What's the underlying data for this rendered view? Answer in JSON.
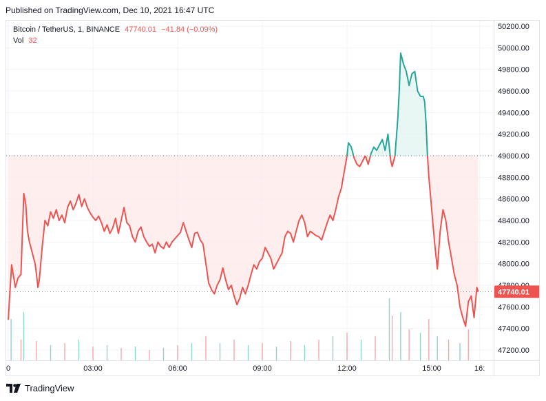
{
  "header": {
    "published": "Published on TradingView.com, Dec 10, 2021 16:47 UTC"
  },
  "legend": {
    "symbol": "Bitcoin / TetherUS, 1, BINANCE",
    "price": "47740.01",
    "change": "−41.84 (−0.09%)",
    "volume_label": "Vol",
    "volume_value": "32"
  },
  "last_price_label": "47740.01",
  "brand": {
    "name": "TradingView"
  },
  "colors": {
    "up": "#26a69a",
    "down": "#ef5350",
    "fill_up": "#e0f3f0",
    "fill_down": "#fde8e8",
    "last_price_tag": "#ef5350"
  },
  "chart_data": {
    "type": "line",
    "title": "Bitcoin / TetherUS, 1, BINANCE",
    "baseline": 49000,
    "last_price": 47740.01,
    "ylim": [
      47120,
      50290
    ],
    "y_ticks": [
      "50200.00",
      "50000.00",
      "49800.00",
      "49600.00",
      "49400.00",
      "49200.00",
      "49000.00",
      "48800.00",
      "48600.00",
      "48400.00",
      "48200.00",
      "48000.00",
      "47800.00",
      "47600.00",
      "47400.00",
      "47200.00"
    ],
    "x_ticks": [
      {
        "label": "0",
        "hour": 0
      },
      {
        "label": "03:00",
        "hour": 3
      },
      {
        "label": "06:00",
        "hour": 6
      },
      {
        "label": "09:00",
        "hour": 9
      },
      {
        "label": "12:00",
        "hour": 12
      },
      {
        "label": "15:00",
        "hour": 15
      },
      {
        "label": "16:",
        "hour": 16.7
      }
    ],
    "grid": true,
    "series": [
      {
        "points": [
          [
            0.0,
            47480
          ],
          [
            0.05,
            47700
          ],
          [
            0.12,
            47990
          ],
          [
            0.25,
            47780
          ],
          [
            0.35,
            47870
          ],
          [
            0.45,
            47900
          ],
          [
            0.55,
            48650
          ],
          [
            0.62,
            48550
          ],
          [
            0.68,
            48300
          ],
          [
            0.75,
            48200
          ],
          [
            0.85,
            48100
          ],
          [
            0.95,
            48000
          ],
          [
            1.0,
            47900
          ],
          [
            1.05,
            47780
          ],
          [
            1.1,
            47850
          ],
          [
            1.2,
            48150
          ],
          [
            1.3,
            48400
          ],
          [
            1.4,
            48350
          ],
          [
            1.5,
            48480
          ],
          [
            1.6,
            48420
          ],
          [
            1.7,
            48500
          ],
          [
            1.8,
            48400
          ],
          [
            1.9,
            48450
          ],
          [
            2.0,
            48380
          ],
          [
            2.1,
            48520
          ],
          [
            2.2,
            48580
          ],
          [
            2.3,
            48500
          ],
          [
            2.4,
            48560
          ],
          [
            2.5,
            48640
          ],
          [
            2.6,
            48530
          ],
          [
            2.7,
            48600
          ],
          [
            2.8,
            48520
          ],
          [
            2.9,
            48470
          ],
          [
            3.0,
            48430
          ],
          [
            3.1,
            48400
          ],
          [
            3.2,
            48440
          ],
          [
            3.3,
            48380
          ],
          [
            3.4,
            48300
          ],
          [
            3.5,
            48360
          ],
          [
            3.6,
            48280
          ],
          [
            3.7,
            48330
          ],
          [
            3.8,
            48420
          ],
          [
            3.9,
            48280
          ],
          [
            4.0,
            48400
          ],
          [
            4.1,
            48520
          ],
          [
            4.2,
            48380
          ],
          [
            4.3,
            48350
          ],
          [
            4.4,
            48250
          ],
          [
            4.5,
            48200
          ],
          [
            4.6,
            48300
          ],
          [
            4.7,
            48340
          ],
          [
            4.8,
            48250
          ],
          [
            4.9,
            48200
          ],
          [
            5.0,
            48160
          ],
          [
            5.1,
            48180
          ],
          [
            5.2,
            48100
          ],
          [
            5.3,
            48200
          ],
          [
            5.4,
            48160
          ],
          [
            5.5,
            48140
          ],
          [
            5.6,
            48200
          ],
          [
            5.7,
            48150
          ],
          [
            5.8,
            48200
          ],
          [
            5.9,
            48230
          ],
          [
            6.0,
            48260
          ],
          [
            6.1,
            48290
          ],
          [
            6.2,
            48380
          ],
          [
            6.3,
            48300
          ],
          [
            6.4,
            48220
          ],
          [
            6.5,
            48150
          ],
          [
            6.6,
            48280
          ],
          [
            6.7,
            48290
          ],
          [
            6.8,
            48220
          ],
          [
            6.9,
            48180
          ],
          [
            7.0,
            48000
          ],
          [
            7.1,
            47820
          ],
          [
            7.2,
            47760
          ],
          [
            7.3,
            47720
          ],
          [
            7.4,
            47800
          ],
          [
            7.5,
            47850
          ],
          [
            7.6,
            47960
          ],
          [
            7.7,
            47850
          ],
          [
            7.8,
            47760
          ],
          [
            7.9,
            47800
          ],
          [
            8.0,
            47700
          ],
          [
            8.1,
            47620
          ],
          [
            8.2,
            47680
          ],
          [
            8.3,
            47780
          ],
          [
            8.4,
            47720
          ],
          [
            8.5,
            47800
          ],
          [
            8.6,
            47900
          ],
          [
            8.7,
            47990
          ],
          [
            8.8,
            47950
          ],
          [
            8.9,
            48020
          ],
          [
            9.0,
            48050
          ],
          [
            9.1,
            48150
          ],
          [
            9.2,
            48100
          ],
          [
            9.3,
            48050
          ],
          [
            9.4,
            47950
          ],
          [
            9.5,
            48000
          ],
          [
            9.6,
            48050
          ],
          [
            9.7,
            48100
          ],
          [
            9.8,
            48250
          ],
          [
            9.9,
            48300
          ],
          [
            10.0,
            48280
          ],
          [
            10.1,
            48200
          ],
          [
            10.2,
            48300
          ],
          [
            10.3,
            48400
          ],
          [
            10.4,
            48450
          ],
          [
            10.5,
            48380
          ],
          [
            10.6,
            48250
          ],
          [
            10.7,
            48300
          ],
          [
            10.8,
            48280
          ],
          [
            10.9,
            48260
          ],
          [
            11.0,
            48250
          ],
          [
            11.1,
            48220
          ],
          [
            11.2,
            48300
          ],
          [
            11.3,
            48380
          ],
          [
            11.4,
            48450
          ],
          [
            11.5,
            48400
          ],
          [
            11.6,
            48500
          ],
          [
            11.7,
            48620
          ],
          [
            11.8,
            48700
          ],
          [
            11.9,
            48850
          ],
          [
            12.0,
            49000
          ],
          [
            12.05,
            49120
          ],
          [
            12.15,
            49080
          ],
          [
            12.25,
            48980
          ],
          [
            12.35,
            48920
          ],
          [
            12.45,
            48900
          ],
          [
            12.55,
            48950
          ],
          [
            12.65,
            49000
          ],
          [
            12.75,
            48920
          ],
          [
            12.85,
            49020
          ],
          [
            12.95,
            49080
          ],
          [
            13.05,
            49050
          ],
          [
            13.15,
            49100
          ],
          [
            13.25,
            49150
          ],
          [
            13.35,
            49050
          ],
          [
            13.45,
            49200
          ],
          [
            13.55,
            48950
          ],
          [
            13.6,
            48900
          ],
          [
            13.7,
            49000
          ],
          [
            13.8,
            49350
          ],
          [
            13.85,
            49600
          ],
          [
            13.9,
            49950
          ],
          [
            14.0,
            49850
          ],
          [
            14.1,
            49780
          ],
          [
            14.2,
            49650
          ],
          [
            14.3,
            49760
          ],
          [
            14.4,
            49780
          ],
          [
            14.5,
            49600
          ],
          [
            14.6,
            49550
          ],
          [
            14.7,
            49550
          ],
          [
            14.75,
            49500
          ],
          [
            14.8,
            49300
          ],
          [
            14.85,
            49000
          ],
          [
            14.9,
            48800
          ],
          [
            15.0,
            48500
          ],
          [
            15.1,
            48200
          ],
          [
            15.2,
            47950
          ],
          [
            15.3,
            48300
          ],
          [
            15.4,
            48500
          ],
          [
            15.5,
            48400
          ],
          [
            15.6,
            48200
          ],
          [
            15.7,
            48050
          ],
          [
            15.8,
            47900
          ],
          [
            15.9,
            47800
          ],
          [
            16.0,
            47600
          ],
          [
            16.1,
            47500
          ],
          [
            16.2,
            47420
          ],
          [
            16.3,
            47650
          ],
          [
            16.4,
            47700
          ],
          [
            16.5,
            47500
          ],
          [
            16.6,
            47780
          ],
          [
            16.65,
            47740
          ]
        ]
      }
    ],
    "volume": {
      "label": "Vol",
      "last": 32,
      "bars": [
        [
          0.1,
          60
        ],
        [
          0.45,
          30
        ],
        [
          0.55,
          70
        ],
        [
          1.0,
          28
        ],
        [
          1.5,
          22
        ],
        [
          2.0,
          25
        ],
        [
          2.5,
          30
        ],
        [
          3.0,
          20
        ],
        [
          3.5,
          22
        ],
        [
          4.0,
          18
        ],
        [
          4.5,
          20
        ],
        [
          5.0,
          15
        ],
        [
          5.5,
          18
        ],
        [
          6.0,
          22
        ],
        [
          6.5,
          25
        ],
        [
          7.0,
          35
        ],
        [
          7.5,
          25
        ],
        [
          8.0,
          30
        ],
        [
          8.5,
          22
        ],
        [
          9.0,
          25
        ],
        [
          9.5,
          20
        ],
        [
          10.0,
          28
        ],
        [
          10.5,
          22
        ],
        [
          11.0,
          30
        ],
        [
          11.5,
          35
        ],
        [
          12.0,
          40
        ],
        [
          12.5,
          30
        ],
        [
          13.0,
          35
        ],
        [
          13.5,
          90
        ],
        [
          13.6,
          65
        ],
        [
          13.9,
          70
        ],
        [
          14.2,
          45
        ],
        [
          14.6,
          40
        ],
        [
          14.9,
          60
        ],
        [
          15.2,
          35
        ],
        [
          15.6,
          30
        ],
        [
          16.0,
          25
        ],
        [
          16.3,
          45
        ]
      ]
    }
  }
}
